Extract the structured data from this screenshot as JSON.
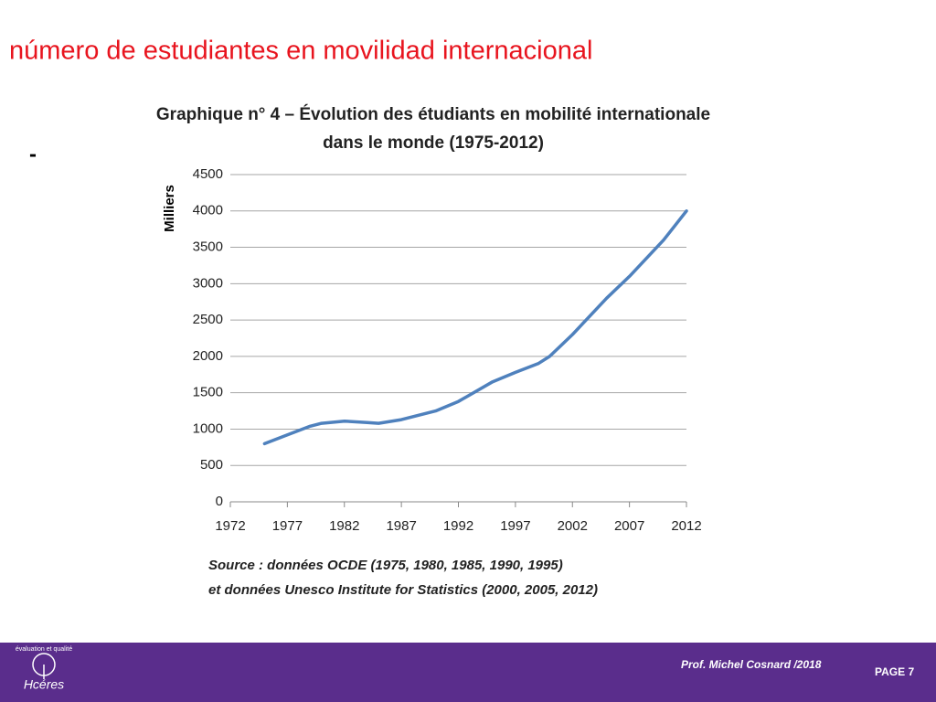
{
  "slide": {
    "heading": "número de estudiantes en movilidad internacional",
    "bullet": "-",
    "footer_author": "Prof. Michel Cosnard /2018",
    "page": "PAGE 7",
    "logo": "Hcéres",
    "logo_arc": "évaluation et qualité"
  },
  "chart_data": {
    "type": "line",
    "title": [
      "Graphique n° 4 – Évolution des étudiants en mobilité internationale",
      "dans le monde (1975-2012)"
    ],
    "y_label": "Milliers",
    "source": [
      "Source : données OCDE (1975, 1980, 1985, 1990, 1995)",
      "et données Unesco Institute for Statistics (2000, 2005, 2012)"
    ],
    "x": [
      1975,
      1977,
      1979,
      1980,
      1982,
      1984,
      1985,
      1987,
      1990,
      1992,
      1995,
      1997,
      1999,
      2000,
      2002,
      2005,
      2007,
      2010,
      2012
    ],
    "values": [
      800,
      920,
      1040,
      1080,
      1110,
      1090,
      1080,
      1130,
      1250,
      1380,
      1650,
      1780,
      1900,
      2000,
      2300,
      2800,
      3100,
      3600,
      4000
    ],
    "color": "#4f81bd",
    "xlim": [
      1972,
      2012
    ],
    "xticks": [
      1972,
      1977,
      1982,
      1987,
      1992,
      1997,
      2002,
      2007,
      2012
    ],
    "ylim": [
      0,
      4500
    ],
    "yticks": [
      0,
      500,
      1000,
      1500,
      2000,
      2500,
      3000,
      3500,
      4000,
      4500
    ],
    "grid": true
  }
}
